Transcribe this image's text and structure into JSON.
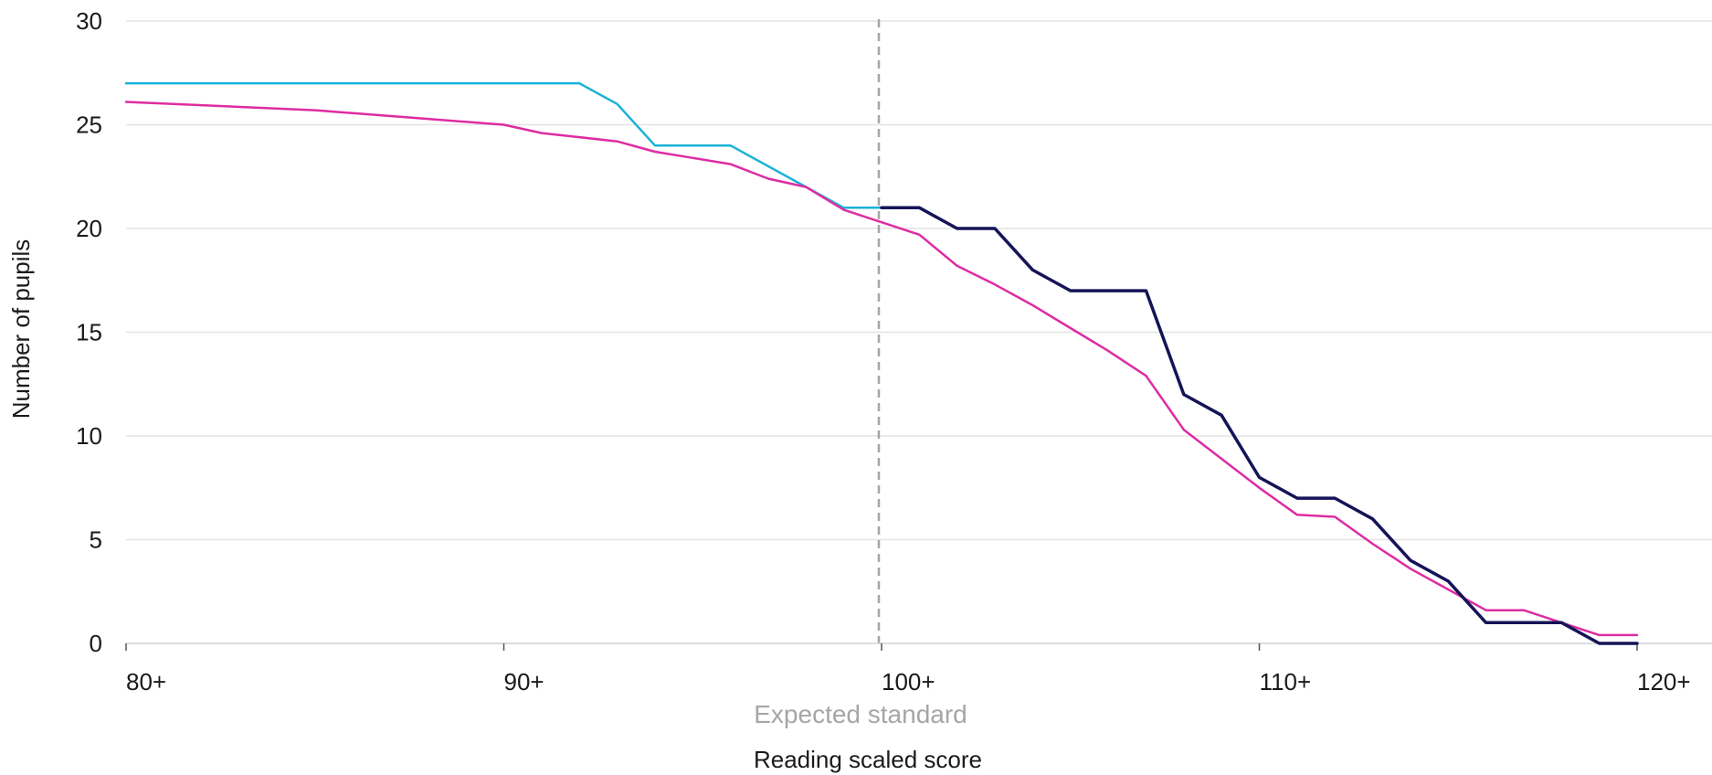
{
  "chart_data": {
    "type": "line",
    "title": "",
    "xlabel": "Reading scaled score",
    "ylabel": "Number of pupils",
    "xlim": [
      80,
      120
    ],
    "ylim": [
      0,
      30
    ],
    "x_ticks": [
      {
        "value": 80,
        "label": "80+"
      },
      {
        "value": 90,
        "label": "90+"
      },
      {
        "value": 100,
        "label": "100+"
      },
      {
        "value": 110,
        "label": "110+"
      },
      {
        "value": 120,
        "label": "120+"
      }
    ],
    "y_ticks": [
      0,
      5,
      10,
      15,
      20,
      25,
      30
    ],
    "grid": "horizontal",
    "reference_line": {
      "x": 100,
      "label": "Expected standard",
      "color": "#a6a6a6"
    },
    "series": [
      {
        "color": "#1ab2d8",
        "x": [
          80,
          92,
          93,
          94,
          96,
          98,
          99,
          100
        ],
        "y": [
          27,
          27,
          26,
          24,
          24,
          22,
          21,
          21
        ]
      },
      {
        "color": "#151458",
        "x": [
          100,
          101,
          102,
          103,
          104,
          105,
          106,
          107,
          108,
          109,
          110,
          111,
          112,
          113,
          114,
          115,
          116,
          117,
          118,
          119,
          120
        ],
        "y": [
          21,
          21,
          20,
          20,
          18,
          17,
          17,
          17,
          12,
          11,
          8,
          7,
          7,
          6,
          4,
          3,
          1,
          1,
          1,
          0,
          0
        ]
      },
      {
        "color": "#de2ca2",
        "x": [
          80,
          85,
          90,
          91,
          92,
          93,
          94,
          95,
          96,
          97,
          98,
          99,
          100,
          101,
          102,
          103,
          104,
          105,
          106,
          107,
          108,
          109,
          110,
          111,
          112,
          113,
          114,
          115,
          116,
          117,
          118,
          119,
          120
        ],
        "y": [
          26.1,
          25.7,
          25.0,
          24.6,
          24.4,
          24.2,
          23.7,
          23.4,
          23.1,
          22.4,
          22.0,
          20.9,
          20.3,
          19.7,
          18.2,
          17.3,
          16.3,
          15.2,
          14.1,
          12.9,
          10.3,
          8.9,
          7.5,
          6.2,
          6.1,
          4.8,
          3.6,
          2.6,
          1.6,
          1.6,
          1.0,
          0.4,
          0.4
        ]
      }
    ]
  }
}
